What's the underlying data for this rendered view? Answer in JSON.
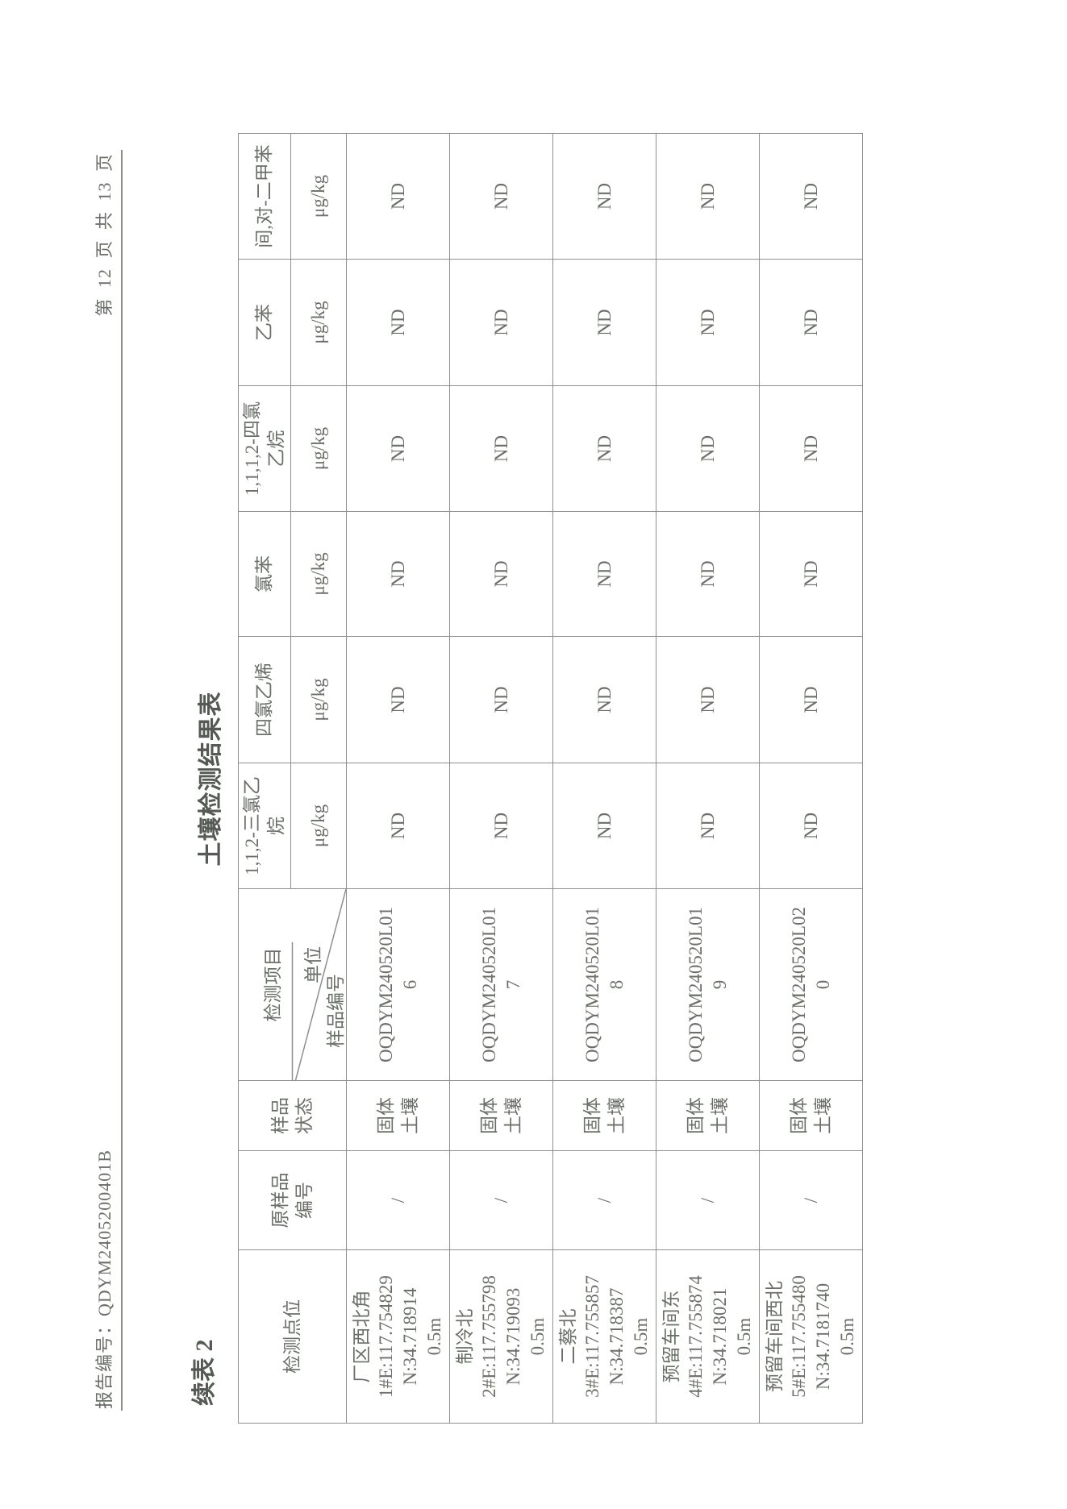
{
  "header": {
    "report_no": "报告编号：QDYM2405200401B",
    "page_no": "第 12 页 共 13 页"
  },
  "continued_label": "续表 2",
  "title": "土壤检测结果表",
  "table": {
    "col_location": "检测点位",
    "col_orig_sample": "原样品编号",
    "col_state": "样品状态",
    "col_project": "检测项目",
    "col_unit": "单位",
    "col_sample_no": "样品编号",
    "analytes": [
      {
        "name": "1,1,2-三氯乙烷",
        "unit": "μg/kg"
      },
      {
        "name": "四氯乙烯",
        "unit": "μg/kg"
      },
      {
        "name": "氯苯",
        "unit": "μg/kg"
      },
      {
        "name": "1,1,1,2-四氯乙烷",
        "unit": "μg/kg"
      },
      {
        "name": "乙苯",
        "unit": "μg/kg"
      },
      {
        "name": "间,对-二甲苯",
        "unit": "μg/kg"
      }
    ],
    "rows": [
      {
        "location": [
          "厂区西北角",
          "1#E:117.754829",
          "N:34.718914",
          "0.5m"
        ],
        "orig": "/",
        "state": "固体土壤",
        "sample": "OQDYM240520L016",
        "values": [
          "ND",
          "ND",
          "ND",
          "ND",
          "ND",
          "ND"
        ]
      },
      {
        "location": [
          "制冷北",
          "2#E:117.755798",
          "N:34.719093",
          "0.5m"
        ],
        "orig": "/",
        "state": "固体土壤",
        "sample": "OQDYM240520L017",
        "values": [
          "ND",
          "ND",
          "ND",
          "ND",
          "ND",
          "ND"
        ]
      },
      {
        "location": [
          "二蔡北",
          "3#E:117.755857",
          "N:34.718387",
          "0.5m"
        ],
        "orig": "/",
        "state": "固体土壤",
        "sample": "OQDYM240520L018",
        "values": [
          "ND",
          "ND",
          "ND",
          "ND",
          "ND",
          "ND"
        ]
      },
      {
        "location": [
          "预留车间东",
          "4#E:117.755874",
          "N:34.718021",
          "0.5m"
        ],
        "orig": "/",
        "state": "固体土壤",
        "sample": "OQDYM240520L019",
        "values": [
          "ND",
          "ND",
          "ND",
          "ND",
          "ND",
          "ND"
        ]
      },
      {
        "location": [
          "预留车间西北",
          "5#E:117.755480",
          "N:34.7181740",
          "0.5m"
        ],
        "orig": "/",
        "state": "固体土壤",
        "sample": "OQDYM240520L020",
        "values": [
          "ND",
          "ND",
          "ND",
          "ND",
          "ND",
          "ND"
        ]
      }
    ]
  }
}
